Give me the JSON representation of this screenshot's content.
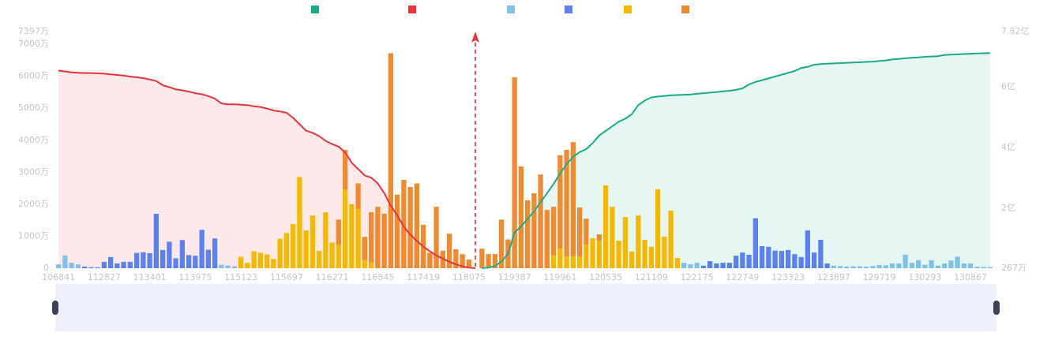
{
  "chart_data": {
    "type": "bar",
    "grid": false,
    "stacked": true,
    "categories": [
      "106841",
      null,
      null,
      null,
      null,
      null,
      null,
      "112827",
      null,
      null,
      null,
      null,
      null,
      null,
      "113401",
      null,
      null,
      null,
      null,
      null,
      null,
      "113975",
      null,
      null,
      null,
      null,
      null,
      null,
      "115123",
      null,
      null,
      null,
      null,
      null,
      null,
      "115697",
      null,
      null,
      null,
      null,
      null,
      null,
      "116271",
      null,
      null,
      null,
      null,
      null,
      null,
      "116845",
      null,
      null,
      null,
      null,
      null,
      null,
      "117419",
      null,
      null,
      null,
      null,
      null,
      null,
      "118075",
      null,
      null,
      null,
      null,
      null,
      null,
      "119387",
      null,
      null,
      null,
      null,
      null,
      null,
      "119961",
      null,
      null,
      null,
      null,
      null,
      null,
      "120535",
      null,
      null,
      null,
      null,
      null,
      null,
      "121109",
      null,
      null,
      null,
      null,
      null,
      null,
      "122175",
      null,
      null,
      null,
      null,
      null,
      null,
      "122749",
      null,
      null,
      null,
      null,
      null,
      null,
      "123323",
      null,
      null,
      null,
      null,
      null,
      null,
      "123897",
      null,
      null,
      null,
      null,
      null,
      null,
      "129719",
      null,
      null,
      null,
      null,
      null,
      null,
      "130293",
      null,
      null,
      null,
      null,
      null,
      null,
      "130867",
      null,
      null,
      null
    ],
    "ylim": [
      0,
      7397
    ],
    "yticks": [
      0,
      {
        "value": 1000,
        "label": "1000万"
      },
      {
        "value": 2000,
        "label": "2000万"
      },
      {
        "value": 3000,
        "label": "3000万"
      },
      {
        "value": 4000,
        "label": "4000万"
      },
      {
        "value": 5000,
        "label": "5000万"
      },
      {
        "value": 6000,
        "label": "6000万"
      },
      {
        "value": 7000,
        "label": "7000万"
      },
      {
        "value": 7397,
        "label": "7397万"
      }
    ],
    "y2lim": [
      267,
      78200
    ],
    "y2ticks": [
      {
        "value": 267,
        "label": "267万"
      },
      {
        "value": 20000,
        "label": "2亿"
      },
      {
        "value": 40000,
        "label": "4亿"
      },
      {
        "value": 60000,
        "label": "6亿"
      },
      {
        "value": 78200,
        "label": "7.82亿"
      }
    ],
    "series": [
      {
        "type": "line",
        "axis": "y2",
        "color": "#1aab8a",
        "area_color": "#e6f6f2",
        "values": [
          null,
          null,
          null,
          null,
          null,
          null,
          null,
          null,
          null,
          null,
          null,
          null,
          null,
          null,
          null,
          null,
          null,
          null,
          null,
          null,
          null,
          null,
          null,
          null,
          null,
          null,
          null,
          null,
          null,
          null,
          null,
          null,
          null,
          null,
          null,
          null,
          null,
          null,
          null,
          null,
          null,
          null,
          null,
          null,
          null,
          null,
          null,
          null,
          null,
          null,
          null,
          null,
          null,
          null,
          null,
          null,
          null,
          null,
          null,
          null,
          null,
          null,
          null,
          null,
          null,
          267,
          500,
          1000,
          2500,
          5000,
          12000,
          14000,
          16500,
          19000,
          22000,
          25000,
          28000,
          31500,
          34500,
          37000,
          38500,
          39500,
          41500,
          44000,
          45500,
          47000,
          48500,
          49500,
          51000,
          54000,
          55500,
          56500,
          56800,
          57000,
          57200,
          57300,
          57400,
          57500,
          57700,
          57900,
          58100,
          58300,
          58500,
          58700,
          59000,
          59500,
          60800,
          61600,
          62200,
          62800,
          63400,
          64000,
          64600,
          65200,
          66200,
          66600,
          67300,
          67500,
          67600,
          67700,
          67800,
          67900,
          68000,
          68100,
          68200,
          68300,
          68500,
          68700,
          69000,
          69200,
          69400,
          69600,
          69700,
          69900,
          70000,
          70100,
          70500,
          70600,
          70700,
          70800,
          70900,
          71000,
          71050,
          71100
        ]
      },
      {
        "type": "line",
        "axis": "y",
        "color": "#e8333f",
        "area_color": "#fde8ea",
        "values": [
          6180,
          6150,
          6120,
          6110,
          6100,
          6100,
          6090,
          6080,
          6060,
          6040,
          6020,
          5990,
          5970,
          5940,
          5900,
          5850,
          5720,
          5660,
          5590,
          5560,
          5520,
          5470,
          5440,
          5380,
          5300,
          5150,
          5120,
          5120,
          5110,
          5100,
          5060,
          5040,
          4990,
          4930,
          4900,
          4860,
          4700,
          4500,
          4300,
          4230,
          4130,
          3980,
          3880,
          3800,
          3620,
          3300,
          3100,
          2900,
          2830,
          2650,
          2350,
          1950,
          1650,
          1300,
          1050,
          850,
          680,
          530,
          400,
          300,
          200,
          120,
          60,
          20,
          0,
          null,
          null,
          null,
          null,
          null,
          null,
          null,
          null,
          null,
          null,
          null,
          null,
          null,
          null,
          null,
          null,
          null,
          null,
          null,
          null,
          null,
          null,
          null,
          null,
          null,
          null,
          null,
          null,
          null,
          null,
          null,
          null,
          null,
          null,
          null,
          null,
          null,
          null,
          null,
          null,
          null,
          null,
          null,
          null,
          null,
          null,
          null,
          null,
          null,
          null,
          null,
          null,
          null,
          null,
          null,
          null,
          null,
          null,
          null,
          null,
          null,
          null,
          null,
          null,
          null,
          null,
          null,
          null,
          null,
          null,
          null,
          null,
          null,
          null,
          null,
          null,
          null,
          null,
          null
        ]
      },
      {
        "type": "bar",
        "axis": "y",
        "color": "#80c1e9",
        "values": [
          120,
          400,
          170,
          120,
          null,
          null,
          null,
          null,
          null,
          null,
          null,
          null,
          null,
          null,
          null,
          null,
          null,
          null,
          null,
          null,
          null,
          null,
          null,
          null,
          null,
          110,
          80,
          60,
          null,
          null,
          null,
          null,
          null,
          null,
          null,
          null,
          null,
          null,
          null,
          null,
          null,
          null,
          null,
          null,
          null,
          null,
          null,
          null,
          null,
          null,
          null,
          null,
          null,
          null,
          null,
          null,
          null,
          null,
          null,
          null,
          null,
          null,
          null,
          null,
          null,
          null,
          null,
          null,
          null,
          null,
          null,
          null,
          null,
          null,
          null,
          null,
          null,
          null,
          null,
          null,
          null,
          null,
          null,
          null,
          null,
          null,
          null,
          null,
          null,
          null,
          null,
          null,
          null,
          null,
          null,
          null,
          170,
          120,
          170,
          null,
          null,
          null,
          null,
          null,
          null,
          null,
          null,
          null,
          null,
          null,
          null,
          null,
          null,
          null,
          null,
          null,
          null,
          null,
          null,
          80,
          70,
          50,
          60,
          60,
          50,
          70,
          100,
          90,
          150,
          150,
          420,
          170,
          250,
          110,
          250,
          80,
          150,
          240,
          360,
          150,
          150,
          50,
          40,
          40
        ]
      },
      {
        "type": "bar",
        "axis": "y",
        "color": "#5b80f0",
        "values": [
          null,
          null,
          null,
          null,
          50,
          30,
          30,
          200,
          350,
          150,
          200,
          200,
          480,
          500,
          470,
          1700,
          570,
          830,
          310,
          880,
          410,
          390,
          1200,
          580,
          930,
          null,
          null,
          null,
          null,
          null,
          null,
          null,
          null,
          null,
          null,
          null,
          null,
          null,
          null,
          null,
          null,
          null,
          null,
          null,
          null,
          null,
          null,
          null,
          null,
          null,
          null,
          null,
          null,
          null,
          null,
          null,
          null,
          null,
          null,
          null,
          null,
          null,
          null,
          null,
          null,
          null,
          null,
          null,
          null,
          null,
          null,
          null,
          null,
          null,
          null,
          null,
          null,
          null,
          null,
          null,
          null,
          null,
          null,
          null,
          null,
          null,
          null,
          null,
          null,
          null,
          null,
          null,
          null,
          null,
          null,
          null,
          null,
          null,
          null,
          80,
          220,
          150,
          170,
          170,
          390,
          490,
          420,
          1560,
          690,
          670,
          550,
          540,
          570,
          440,
          350,
          1180,
          490,
          890,
          150,
          null,
          null,
          null,
          null,
          null,
          null,
          null,
          null,
          null,
          null,
          null,
          null,
          null,
          null,
          null,
          null,
          null,
          null,
          null,
          null,
          null,
          null,
          null,
          null,
          null
        ]
      },
      {
        "type": "bar",
        "axis": "y",
        "color": "#f5b800",
        "values": [
          null,
          null,
          null,
          null,
          null,
          null,
          null,
          null,
          null,
          null,
          null,
          null,
          null,
          null,
          null,
          null,
          null,
          null,
          null,
          null,
          null,
          null,
          null,
          null,
          null,
          null,
          null,
          null,
          360,
          170,
          530,
          480,
          430,
          290,
          920,
          1100,
          1380,
          2850,
          1180,
          1650,
          540,
          1750,
          800,
          750,
          2450,
          2000,
          1850,
          250,
          180,
          null,
          null,
          null,
          null,
          null,
          null,
          null,
          null,
          null,
          null,
          null,
          null,
          null,
          null,
          null,
          null,
          null,
          null,
          null,
          null,
          null,
          null,
          null,
          null,
          null,
          null,
          null,
          400,
          620,
          370,
          370,
          370,
          740,
          940,
          860,
          2590,
          1920,
          860,
          1600,
          520,
          1650,
          890,
          670,
          2470,
          990,
          1800,
          320,
          null,
          null,
          null,
          null,
          null,
          null,
          null,
          null,
          null,
          null,
          null,
          null,
          null,
          null,
          null,
          null,
          null,
          null,
          null,
          null,
          null,
          null,
          null,
          null,
          null,
          null,
          null,
          null,
          null,
          null,
          null,
          null,
          null,
          null,
          null,
          null,
          null,
          null,
          null,
          null,
          null,
          null,
          null,
          null,
          null,
          null,
          null,
          null
        ]
      },
      {
        "type": "bar",
        "axis": "y",
        "color": "#f08a30",
        "values": [
          null,
          null,
          null,
          null,
          null,
          null,
          null,
          null,
          null,
          null,
          null,
          null,
          null,
          null,
          null,
          null,
          null,
          null,
          null,
          null,
          null,
          null,
          null,
          null,
          null,
          null,
          null,
          null,
          null,
          null,
          null,
          null,
          null,
          null,
          null,
          null,
          null,
          null,
          null,
          null,
          null,
          null,
          null,
          770,
          1250,
          null,
          800,
          730,
          1570,
          1920,
          1700,
          6720,
          2300,
          2760,
          2540,
          2650,
          1360,
          480,
          1920,
          550,
          1080,
          590,
          440,
          270,
          null,
          610,
          440,
          440,
          1520,
          900,
          5970,
          3180,
          2120,
          2340,
          2930,
          1820,
          1520,
          2910,
          3330,
          3570,
          1530,
          810,
          null,
          200,
          null,
          null,
          null,
          null,
          null,
          null,
          null,
          null,
          null,
          null,
          null,
          null,
          null,
          null,
          null,
          null,
          null,
          null,
          null,
          null,
          null,
          null,
          null,
          null,
          null,
          null,
          null,
          null,
          null,
          null,
          null,
          null,
          null,
          null,
          null,
          null,
          null,
          null,
          null,
          null,
          null,
          null,
          null,
          null,
          null,
          null,
          null,
          null,
          null,
          null,
          null,
          null,
          null,
          null,
          null,
          null,
          null,
          null,
          null,
          null
        ]
      }
    ]
  }
}
